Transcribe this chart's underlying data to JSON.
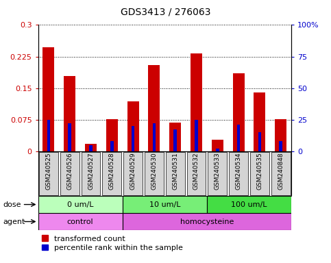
{
  "title": "GDS3413 / 276063",
  "samples": [
    "GSM240525",
    "GSM240526",
    "GSM240527",
    "GSM240528",
    "GSM240529",
    "GSM240530",
    "GSM240531",
    "GSM240532",
    "GSM240533",
    "GSM240534",
    "GSM240535",
    "GSM240848"
  ],
  "transformed_count": [
    0.247,
    0.178,
    0.018,
    0.076,
    0.118,
    0.205,
    0.068,
    0.232,
    0.028,
    0.185,
    0.14,
    0.076
  ],
  "percentile_rank": [
    25,
    22,
    5,
    8,
    20,
    22,
    17,
    25,
    2,
    21,
    15,
    8
  ],
  "red_color": "#cc0000",
  "blue_color": "#0000cc",
  "red_bar_width": 0.55,
  "blue_bar_width": 0.15,
  "ylim_left": [
    0,
    0.3
  ],
  "ylim_right": [
    0,
    100
  ],
  "yticks_left": [
    0,
    0.075,
    0.15,
    0.225,
    0.3
  ],
  "ytick_labels_left": [
    "0",
    "0.075",
    "0.15",
    "0.225",
    "0.3"
  ],
  "yticks_right": [
    0,
    25,
    50,
    75,
    100
  ],
  "ytick_labels_right": [
    "0",
    "25",
    "50",
    "75",
    "100%"
  ],
  "dose_groups": [
    {
      "label": "0 um/L",
      "start": 0,
      "end": 4,
      "color": "#bbffbb"
    },
    {
      "label": "10 um/L",
      "start": 4,
      "end": 8,
      "color": "#77ee77"
    },
    {
      "label": "100 um/L",
      "start": 8,
      "end": 12,
      "color": "#44dd44"
    }
  ],
  "agent_groups": [
    {
      "label": "control",
      "start": 0,
      "end": 4,
      "color": "#ee88ee"
    },
    {
      "label": "homocysteine",
      "start": 4,
      "end": 12,
      "color": "#dd66dd"
    }
  ],
  "dose_label": "dose",
  "agent_label": "agent",
  "legend_red": "transformed count",
  "legend_blue": "percentile rank within the sample",
  "sample_bg_color": "#d4d4d4",
  "figsize": [
    4.83,
    3.84
  ],
  "dpi": 100
}
